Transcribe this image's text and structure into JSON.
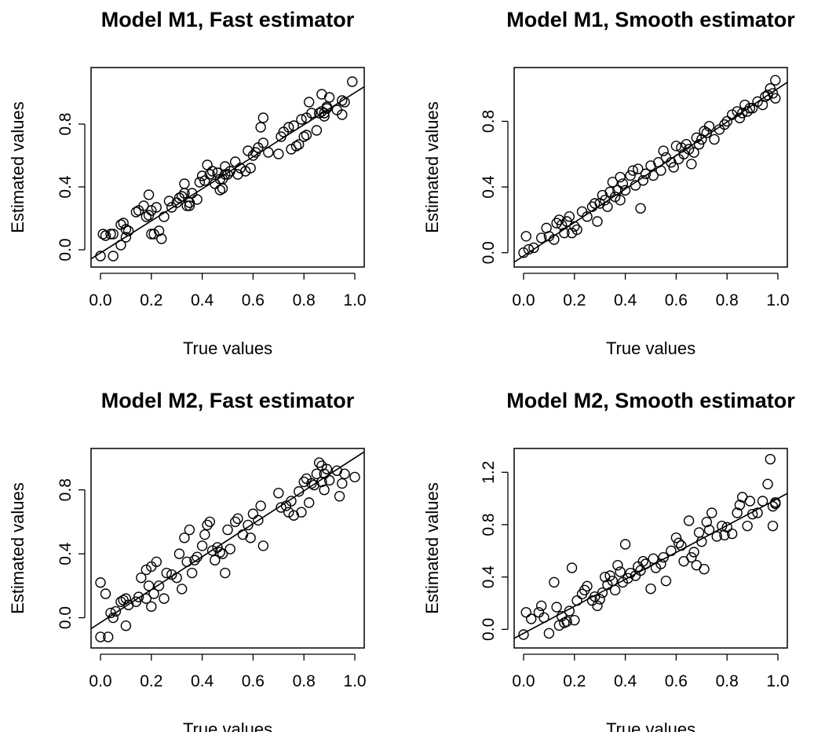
{
  "chart_data": [
    {
      "type": "scatter",
      "title": "Model M1, Fast estimator",
      "xlabel": "True values",
      "ylabel": "Estimated values",
      "xlim": [
        0.0,
        1.0
      ],
      "ylim": [
        -0.05,
        1.1
      ],
      "xticks": [
        "0.0",
        "0.2",
        "0.4",
        "0.6",
        "0.8",
        "1.0"
      ],
      "yticks": [
        "0.0",
        "0.4",
        "0.8"
      ],
      "fit_line": {
        "x": [
          0.0,
          1.0
        ],
        "y": [
          -0.02,
          1.0
        ]
      },
      "points": {
        "x": [
          0.0,
          0.01,
          0.02,
          0.04,
          0.05,
          0.05,
          0.08,
          0.08,
          0.09,
          0.1,
          0.1,
          0.11,
          0.14,
          0.15,
          0.17,
          0.18,
          0.19,
          0.19,
          0.2,
          0.2,
          0.21,
          0.22,
          0.23,
          0.24,
          0.25,
          0.27,
          0.28,
          0.3,
          0.31,
          0.32,
          0.33,
          0.33,
          0.34,
          0.35,
          0.35,
          0.36,
          0.38,
          0.39,
          0.4,
          0.41,
          0.42,
          0.43,
          0.44,
          0.45,
          0.46,
          0.47,
          0.47,
          0.48,
          0.48,
          0.49,
          0.49,
          0.5,
          0.51,
          0.53,
          0.54,
          0.55,
          0.57,
          0.58,
          0.59,
          0.6,
          0.61,
          0.62,
          0.63,
          0.64,
          0.64,
          0.66,
          0.7,
          0.71,
          0.72,
          0.74,
          0.75,
          0.76,
          0.77,
          0.78,
          0.79,
          0.8,
          0.81,
          0.81,
          0.82,
          0.83,
          0.85,
          0.86,
          0.87,
          0.87,
          0.88,
          0.88,
          0.89,
          0.89,
          0.9,
          0.93,
          0.95,
          0.95,
          0.96,
          0.99
        ],
        "y": [
          -0.04,
          0.1,
          0.09,
          0.1,
          0.1,
          -0.04,
          0.03,
          0.16,
          0.17,
          0.08,
          0.13,
          0.12,
          0.24,
          0.25,
          0.28,
          0.21,
          0.22,
          0.35,
          0.1,
          0.25,
          0.1,
          0.27,
          0.12,
          0.07,
          0.21,
          0.31,
          0.27,
          0.3,
          0.33,
          0.34,
          0.36,
          0.42,
          0.28,
          0.28,
          0.3,
          0.36,
          0.32,
          0.43,
          0.47,
          0.44,
          0.54,
          0.48,
          0.5,
          0.42,
          0.49,
          0.38,
          0.45,
          0.45,
          0.39,
          0.53,
          0.48,
          0.48,
          0.5,
          0.56,
          0.48,
          0.52,
          0.5,
          0.63,
          0.52,
          0.6,
          0.62,
          0.65,
          0.78,
          0.84,
          0.68,
          0.62,
          0.61,
          0.72,
          0.75,
          0.78,
          0.64,
          0.79,
          0.66,
          0.67,
          0.83,
          0.72,
          0.73,
          0.84,
          0.94,
          0.87,
          0.76,
          0.87,
          0.88,
          0.99,
          0.87,
          0.85,
          0.9,
          0.91,
          0.97,
          0.89,
          0.95,
          0.86,
          0.94,
          1.07
        ]
      }
    },
    {
      "type": "scatter",
      "title": "Model M1, Smooth  estimator",
      "xlabel": "True values",
      "ylabel": "Estimated values",
      "xlim": [
        0.0,
        1.0
      ],
      "ylim": [
        -0.03,
        1.07
      ],
      "xticks": [
        "0.0",
        "0.2",
        "0.4",
        "0.6",
        "0.8",
        "1.0"
      ],
      "yticks": [
        "0.0",
        "0.4",
        "0.8"
      ],
      "fit_line": {
        "x": [
          0.0,
          1.0
        ],
        "y": [
          -0.02,
          1.0
        ]
      },
      "points": {
        "x": [
          0.0,
          0.01,
          0.02,
          0.04,
          0.07,
          0.09,
          0.1,
          0.12,
          0.13,
          0.14,
          0.15,
          0.16,
          0.17,
          0.18,
          0.19,
          0.2,
          0.21,
          0.23,
          0.25,
          0.27,
          0.28,
          0.29,
          0.3,
          0.31,
          0.32,
          0.33,
          0.34,
          0.35,
          0.36,
          0.37,
          0.38,
          0.38,
          0.39,
          0.4,
          0.42,
          0.43,
          0.44,
          0.45,
          0.46,
          0.47,
          0.48,
          0.5,
          0.51,
          0.53,
          0.54,
          0.55,
          0.56,
          0.58,
          0.59,
          0.6,
          0.61,
          0.62,
          0.63,
          0.64,
          0.65,
          0.66,
          0.67,
          0.68,
          0.69,
          0.7,
          0.71,
          0.72,
          0.73,
          0.75,
          0.77,
          0.79,
          0.8,
          0.82,
          0.84,
          0.85,
          0.86,
          0.87,
          0.88,
          0.89,
          0.9,
          0.92,
          0.94,
          0.95,
          0.96,
          0.97,
          0.98,
          0.99,
          0.99
        ],
        "y": [
          0.0,
          0.1,
          0.02,
          0.03,
          0.09,
          0.15,
          0.1,
          0.08,
          0.18,
          0.2,
          0.17,
          0.12,
          0.19,
          0.22,
          0.12,
          0.16,
          0.14,
          0.25,
          0.22,
          0.28,
          0.3,
          0.19,
          0.3,
          0.35,
          0.32,
          0.28,
          0.37,
          0.43,
          0.34,
          0.38,
          0.32,
          0.46,
          0.42,
          0.38,
          0.47,
          0.5,
          0.41,
          0.51,
          0.27,
          0.44,
          0.48,
          0.53,
          0.47,
          0.55,
          0.5,
          0.62,
          0.58,
          0.55,
          0.52,
          0.65,
          0.57,
          0.64,
          0.6,
          0.66,
          0.63,
          0.54,
          0.61,
          0.7,
          0.66,
          0.69,
          0.74,
          0.73,
          0.77,
          0.69,
          0.75,
          0.78,
          0.8,
          0.84,
          0.86,
          0.82,
          0.85,
          0.9,
          0.86,
          0.88,
          0.88,
          0.92,
          0.9,
          0.95,
          0.96,
          1.0,
          0.97,
          0.94,
          1.05
        ]
      }
    },
    {
      "type": "scatter",
      "title": "Model M2, Fast  estimator",
      "xlabel": "True values",
      "ylabel": "Estimated values",
      "xlim": [
        0.0,
        1.0
      ],
      "ylim": [
        -0.13,
        1.0
      ],
      "xticks": [
        "0.0",
        "0.2",
        "0.4",
        "0.6",
        "0.8",
        "1.0"
      ],
      "yticks": [
        "0.0",
        "0.4",
        "0.8"
      ],
      "fit_line": {
        "x": [
          0.0,
          1.0
        ],
        "y": [
          -0.03,
          1.0
        ]
      },
      "points": {
        "x": [
          0.0,
          0.0,
          0.02,
          0.03,
          0.04,
          0.05,
          0.06,
          0.08,
          0.09,
          0.1,
          0.1,
          0.11,
          0.14,
          0.15,
          0.16,
          0.18,
          0.18,
          0.19,
          0.2,
          0.2,
          0.21,
          0.22,
          0.23,
          0.25,
          0.26,
          0.28,
          0.3,
          0.31,
          0.32,
          0.33,
          0.34,
          0.35,
          0.36,
          0.37,
          0.38,
          0.4,
          0.41,
          0.42,
          0.43,
          0.44,
          0.45,
          0.46,
          0.47,
          0.48,
          0.49,
          0.5,
          0.51,
          0.53,
          0.54,
          0.56,
          0.58,
          0.59,
          0.6,
          0.62,
          0.63,
          0.64,
          0.7,
          0.71,
          0.73,
          0.74,
          0.75,
          0.76,
          0.78,
          0.79,
          0.8,
          0.81,
          0.82,
          0.83,
          0.84,
          0.85,
          0.86,
          0.87,
          0.87,
          0.88,
          0.88,
          0.89,
          0.9,
          0.93,
          0.94,
          0.95,
          0.96,
          1.0
        ],
        "y": [
          0.22,
          -0.12,
          0.15,
          -0.12,
          0.03,
          0.0,
          0.04,
          0.1,
          0.11,
          0.12,
          -0.05,
          0.08,
          0.1,
          0.13,
          0.25,
          0.12,
          0.3,
          0.2,
          0.32,
          0.07,
          0.15,
          0.35,
          0.2,
          0.12,
          0.28,
          0.27,
          0.25,
          0.4,
          0.18,
          0.5,
          0.35,
          0.55,
          0.28,
          0.36,
          0.38,
          0.45,
          0.52,
          0.58,
          0.6,
          0.42,
          0.36,
          0.44,
          0.41,
          0.4,
          0.28,
          0.55,
          0.43,
          0.6,
          0.62,
          0.52,
          0.58,
          0.5,
          0.65,
          0.61,
          0.7,
          0.45,
          0.78,
          0.69,
          0.7,
          0.66,
          0.73,
          0.64,
          0.79,
          0.66,
          0.85,
          0.87,
          0.72,
          0.84,
          0.83,
          0.9,
          0.97,
          0.95,
          0.85,
          0.9,
          0.8,
          0.93,
          0.86,
          0.92,
          0.76,
          0.84,
          0.9,
          0.88
        ]
      }
    },
    {
      "type": "scatter",
      "title": "Model M2, Smooth  estimator",
      "xlabel": "True values",
      "ylabel": "Estimated values",
      "xlim": [
        0.0,
        1.0
      ],
      "ylim": [
        -0.07,
        1.31
      ],
      "xticks": [
        "0.0",
        "0.2",
        "0.4",
        "0.6",
        "0.8",
        "1.0"
      ],
      "yticks": [
        "0.0",
        "0.4",
        "0.8",
        "1.2"
      ],
      "fit_line": {
        "x": [
          0.0,
          1.0
        ],
        "y": [
          -0.03,
          1.0
        ]
      },
      "points": {
        "x": [
          0.0,
          0.01,
          0.03,
          0.06,
          0.07,
          0.08,
          0.1,
          0.12,
          0.13,
          0.14,
          0.15,
          0.16,
          0.17,
          0.18,
          0.19,
          0.2,
          0.21,
          0.23,
          0.24,
          0.25,
          0.27,
          0.28,
          0.29,
          0.3,
          0.31,
          0.32,
          0.33,
          0.34,
          0.35,
          0.36,
          0.37,
          0.38,
          0.39,
          0.4,
          0.41,
          0.42,
          0.44,
          0.45,
          0.46,
          0.47,
          0.48,
          0.5,
          0.51,
          0.52,
          0.54,
          0.55,
          0.56,
          0.58,
          0.6,
          0.61,
          0.62,
          0.63,
          0.65,
          0.66,
          0.67,
          0.68,
          0.69,
          0.7,
          0.71,
          0.72,
          0.73,
          0.74,
          0.76,
          0.78,
          0.79,
          0.8,
          0.82,
          0.84,
          0.85,
          0.86,
          0.88,
          0.89,
          0.9,
          0.92,
          0.94,
          0.96,
          0.97,
          0.98,
          0.98,
          0.99,
          0.99
        ],
        "y": [
          -0.04,
          0.13,
          0.08,
          0.13,
          0.18,
          0.09,
          -0.03,
          0.36,
          0.17,
          0.03,
          0.1,
          0.05,
          0.06,
          0.14,
          0.47,
          0.07,
          0.22,
          0.27,
          0.3,
          0.33,
          0.22,
          0.25,
          0.18,
          0.23,
          0.28,
          0.4,
          0.34,
          0.41,
          0.37,
          0.3,
          0.49,
          0.44,
          0.36,
          0.65,
          0.39,
          0.43,
          0.41,
          0.48,
          0.45,
          0.52,
          0.5,
          0.31,
          0.54,
          0.47,
          0.5,
          0.55,
          0.37,
          0.6,
          0.7,
          0.66,
          0.64,
          0.52,
          0.83,
          0.55,
          0.59,
          0.49,
          0.74,
          0.67,
          0.46,
          0.82,
          0.76,
          0.89,
          0.71,
          0.79,
          0.72,
          0.78,
          0.73,
          0.89,
          0.95,
          1.01,
          0.79,
          0.98,
          0.88,
          0.89,
          0.98,
          1.11,
          1.3,
          0.94,
          0.79,
          0.96,
          0.97
        ]
      }
    }
  ]
}
